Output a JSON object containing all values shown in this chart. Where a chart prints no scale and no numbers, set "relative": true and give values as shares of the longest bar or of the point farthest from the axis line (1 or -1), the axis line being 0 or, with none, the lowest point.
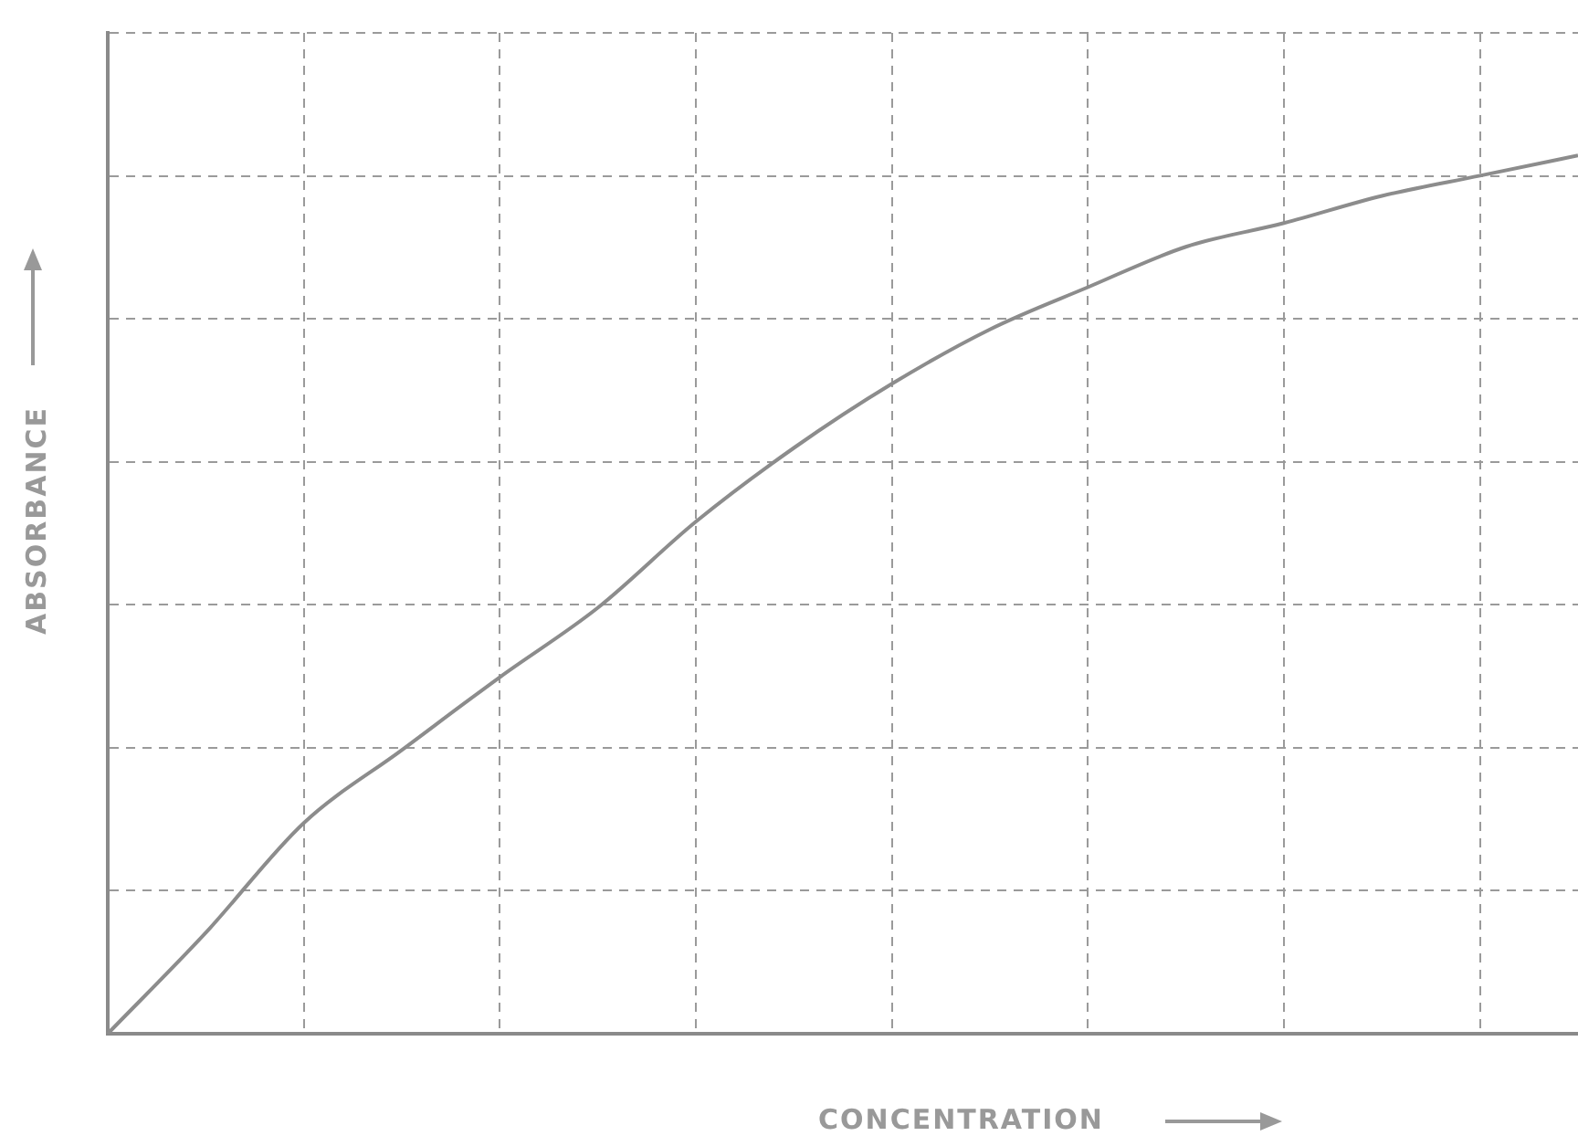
{
  "chart_data": {
    "type": "line",
    "xlabel": "CONCENTRATION",
    "ylabel": "ABSORBANCE",
    "relative": true,
    "grid": true,
    "categories": [
      null,
      null,
      null,
      null,
      null,
      null,
      null,
      null,
      null,
      null,
      null,
      null,
      null,
      null,
      null,
      null
    ],
    "series": [
      {
        "color": "#8c8c8c",
        "values": [
          0,
          0.115,
          0.24,
          0.323,
          0.406,
          0.485,
          0.583,
          0.667,
          0.74,
          0.802,
          0.85,
          0.896,
          0.923,
          0.954,
          0.977,
          1
        ]
      }
    ]
  }
}
